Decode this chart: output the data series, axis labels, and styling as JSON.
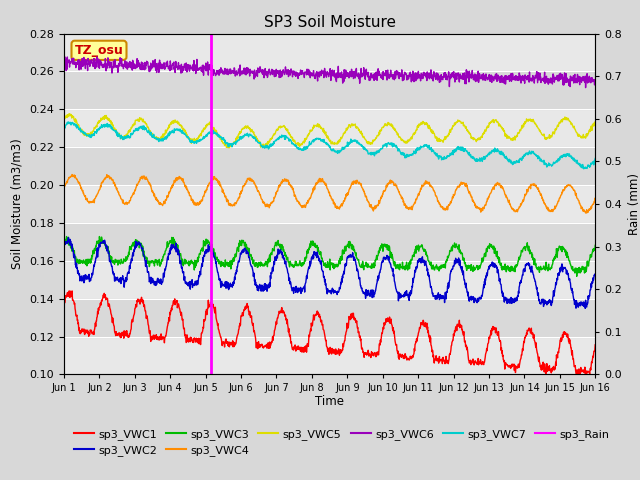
{
  "title": "SP3 Soil Moisture",
  "xlabel": "Time",
  "ylabel_left": "Soil Moisture (m3/m3)",
  "ylabel_right": "Rain (mm)",
  "ylim_left": [
    0.1,
    0.28
  ],
  "ylim_right": [
    0.0,
    0.8
  ],
  "yticks_left": [
    0.1,
    0.12,
    0.14,
    0.16,
    0.18,
    0.2,
    0.22,
    0.24,
    0.26,
    0.28
  ],
  "yticks_right": [
    0.0,
    0.1,
    0.2,
    0.3,
    0.4,
    0.5,
    0.6,
    0.7,
    0.8
  ],
  "xtick_labels": [
    "Jun 1",
    "Jun 2",
    "Jun 3",
    "Jun 4",
    "Jun 5",
    "Jun 6",
    "Jun 7",
    "Jun 8",
    "Jun 9",
    "Jun 10",
    "Jun 11",
    "Jun 12",
    "Jun 13",
    "Jun 14",
    "Jun 15",
    "Jun 16"
  ],
  "vline_x": 4.15,
  "vline_color": "#FF00FF",
  "annotation_text": "TZ_osu",
  "bg_color": "#D8D8D8",
  "plot_bg_color": "#E8E8E8",
  "stripe_color": "#CCCCCC",
  "colors": {
    "sp3_VWC1": "#FF0000",
    "sp3_VWC2": "#0000CC",
    "sp3_VWC3": "#00BB00",
    "sp3_VWC4": "#FF8C00",
    "sp3_VWC5": "#DDDD00",
    "sp3_VWC6": "#9900BB",
    "sp3_VWC7": "#00CCCC",
    "sp3_Rain": "#FF00FF"
  },
  "n_points": 1440,
  "days": 15
}
